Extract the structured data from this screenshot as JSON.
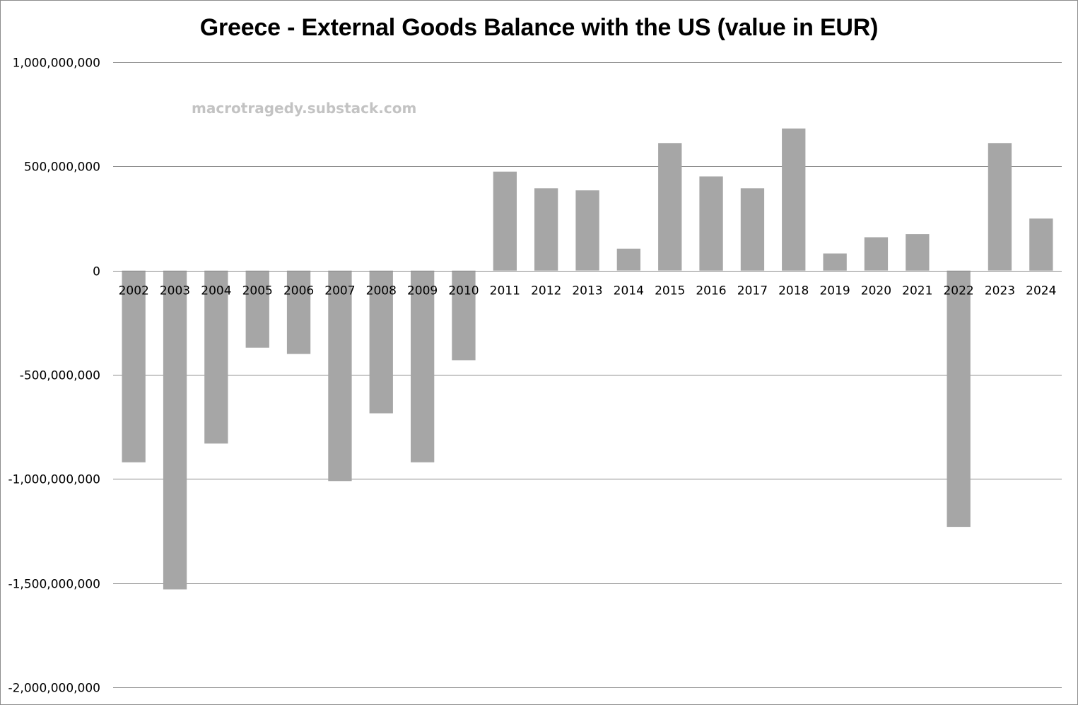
{
  "chart_data": {
    "type": "bar",
    "title": "Greece - External Goods Balance with the US (value in EUR)",
    "watermark": "macrotragedy.substack.com",
    "xlabel": "",
    "ylabel": "",
    "ylim": [
      -2000000000,
      1000000000
    ],
    "yticks": [
      1000000000,
      500000000,
      0,
      -500000000,
      -1000000000,
      -1500000000,
      -2000000000
    ],
    "ytick_labels": [
      "1,000,000,000",
      "500,000,000",
      "0",
      "-500,000,000",
      "-1,000,000,000",
      "-1,500,000,000",
      "-2,000,000,000"
    ],
    "grid": true,
    "bar_color": "#a6a6a6",
    "grid_color": "#8c8c8c",
    "categories": [
      "2002",
      "2003",
      "2004",
      "2005",
      "2006",
      "2007",
      "2008",
      "2009",
      "2010",
      "2011",
      "2012",
      "2013",
      "2014",
      "2015",
      "2016",
      "2017",
      "2018",
      "2019",
      "2020",
      "2021",
      "2022",
      "2023",
      "2024"
    ],
    "values": [
      -920000000,
      -1530000000,
      -830000000,
      -370000000,
      -400000000,
      -1010000000,
      -685000000,
      -920000000,
      -430000000,
      475000000,
      395000000,
      385000000,
      105000000,
      612000000,
      452000000,
      395000000,
      682000000,
      82000000,
      160000000,
      175000000,
      -1230000000,
      612000000,
      250000000
    ]
  }
}
